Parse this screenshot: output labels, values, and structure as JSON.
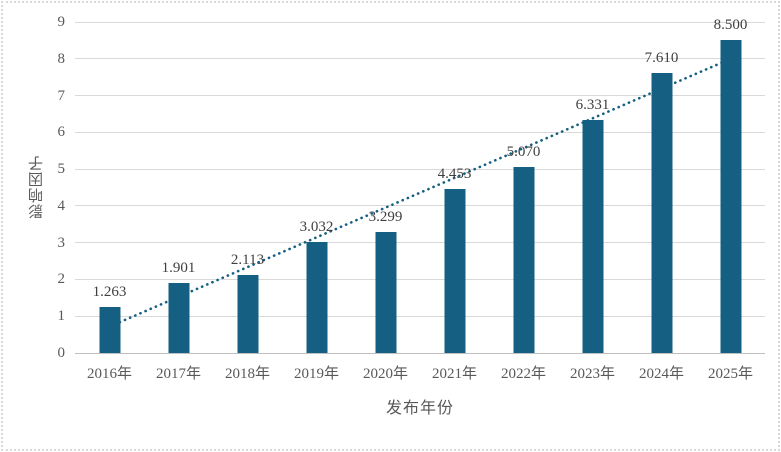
{
  "chart_data": {
    "type": "bar",
    "title": "",
    "categories": [
      "2016年",
      "2017年",
      "2018年",
      "2019年",
      "2020年",
      "2021年",
      "2022年",
      "2023年",
      "2024年",
      "2025年"
    ],
    "values": [
      1.263,
      1.901,
      2.113,
      3.032,
      3.299,
      4.453,
      5.07,
      6.331,
      7.61,
      8.5
    ],
    "value_labels": [
      "1.263",
      "1.901",
      "2.113",
      "3.032",
      "3.299",
      "4.453",
      "5.070",
      "6.331",
      "7.610",
      "8.500"
    ],
    "xlabel": "发布年份",
    "ylabel": "影响因子",
    "ylim": [
      0,
      9
    ],
    "yticks": [
      0,
      1,
      2,
      3,
      4,
      5,
      6,
      7,
      8,
      9
    ],
    "grid": true,
    "legend": "none",
    "trendline": {
      "style": "dotted",
      "shape": "linear",
      "start_value": 0.718,
      "end_value": 7.997
    },
    "colors": {
      "bar": "#156082",
      "trendline": "#156082",
      "gridline": "#d9d9d9",
      "axis_line": "#bfbfbf",
      "tick_label": "#595959",
      "data_label": "#3f3f3f",
      "axis_title": "#595959",
      "background": "#ffffff",
      "selection_border": "#d9d9d9"
    }
  }
}
